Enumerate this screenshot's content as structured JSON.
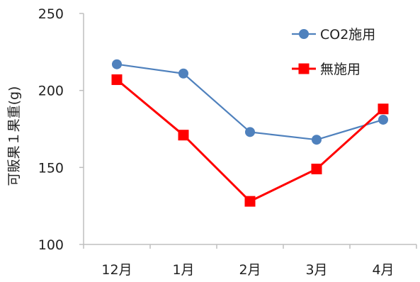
{
  "chart_data": {
    "type": "line",
    "categories": [
      "12月",
      "1月",
      "2月",
      "3月",
      "4月"
    ],
    "series": [
      {
        "name": "CO2施用",
        "values": [
          217,
          211,
          173,
          168,
          181
        ],
        "color": "#4F81BD",
        "marker": "circle"
      },
      {
        "name": "無施用",
        "values": [
          207,
          171,
          128,
          149,
          188
        ],
        "color": "#FF0000",
        "marker": "square"
      }
    ],
    "title": "",
    "xlabel": "",
    "ylabel": "可販果１果重(g)",
    "ylim": [
      100,
      250
    ],
    "yticks": [
      100,
      150,
      200,
      250
    ],
    "grid": false,
    "legend_position": "top-right"
  }
}
